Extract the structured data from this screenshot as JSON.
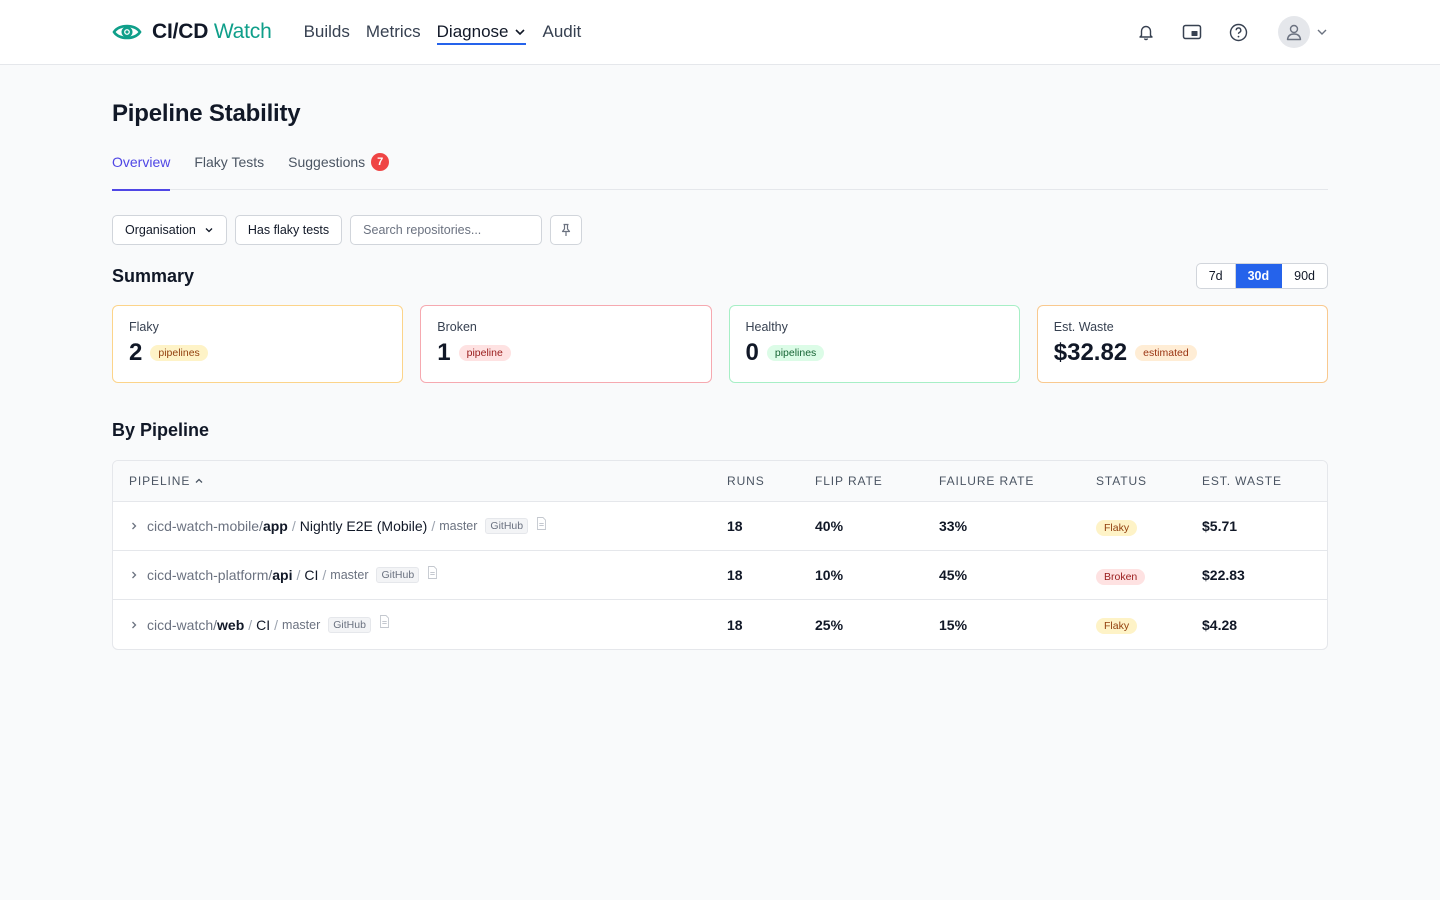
{
  "brand": {
    "name_bold": "CI/CD",
    "name_light": "Watch"
  },
  "nav": [
    {
      "label": "Builds"
    },
    {
      "label": "Metrics"
    },
    {
      "label": "Diagnose"
    },
    {
      "label": "Audit"
    }
  ],
  "page": {
    "title": "Pipeline Stability"
  },
  "tabs": [
    {
      "label": "Overview"
    },
    {
      "label": "Flaky Tests"
    },
    {
      "label": "Suggestions",
      "badge": "7"
    }
  ],
  "filters": {
    "organisation": "Organisation",
    "has_flaky": "Has flaky tests",
    "search_placeholder": "Search repositories..."
  },
  "summary": {
    "title": "Summary",
    "ranges": [
      "7d",
      "30d",
      "90d"
    ],
    "active_range": "30d",
    "cards": [
      {
        "label": "Flaky",
        "value": "2",
        "pill": "pipelines"
      },
      {
        "label": "Broken",
        "value": "1",
        "pill": "pipeline"
      },
      {
        "label": "Healthy",
        "value": "0",
        "pill": "pipelines"
      },
      {
        "label": "Est. Waste",
        "value": "$32.82",
        "pill": "estimated"
      }
    ]
  },
  "by_pipeline": {
    "title": "By Pipeline",
    "columns": [
      "PIPELINE",
      "RUNS",
      "FLIP RATE",
      "FAILURE RATE",
      "STATUS",
      "EST. WASTE"
    ],
    "rows": [
      {
        "org": "cicd-watch-mobile/",
        "repo": "app",
        "pipeline": "Nightly E2E (Mobile)",
        "branch": "master",
        "provider": "GitHub",
        "runs": "18",
        "flip_rate": "40%",
        "failure_rate": "33%",
        "status": "Flaky",
        "waste": "$5.71"
      },
      {
        "org": "cicd-watch-platform/",
        "repo": "api",
        "pipeline": "CI",
        "branch": "master",
        "provider": "GitHub",
        "runs": "18",
        "flip_rate": "10%",
        "failure_rate": "45%",
        "status": "Broken",
        "waste": "$22.83"
      },
      {
        "org": "cicd-watch/",
        "repo": "web",
        "pipeline": "CI",
        "branch": "master",
        "provider": "GitHub",
        "runs": "18",
        "flip_rate": "25%",
        "failure_rate": "15%",
        "status": "Flaky",
        "waste": "$4.28"
      }
    ]
  },
  "separator": "/",
  "colors": {
    "brand": "#0f9f8a",
    "primary": "#2563eb",
    "tab_active": "#4f46e5",
    "badge": "#ef4444"
  }
}
